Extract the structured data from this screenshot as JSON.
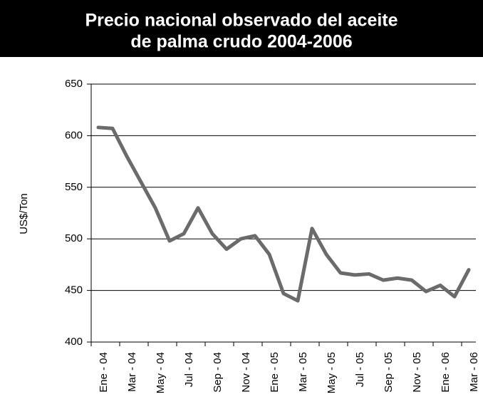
{
  "chart_data": {
    "type": "line",
    "title": "Precio nacional observado del aceite",
    "subtitle": "de palma crudo 2004-2006",
    "ylabel": "US$/Ton",
    "categories": [
      "Ene - 04",
      null,
      "Mar - 04",
      null,
      "May - 04",
      null,
      "Jul - 04",
      null,
      "Sep - 04",
      null,
      "Nov - 04",
      null,
      "Ene - 05",
      null,
      "Mar - 05",
      null,
      "May - 05",
      null,
      "Jul - 05",
      null,
      "Sep - 05",
      null,
      "Nov - 05",
      null,
      "Ene - 06",
      null,
      "Mar - 06"
    ],
    "series": [
      {
        "color": "#6b6b6b",
        "values": [
          608,
          607,
          580,
          555,
          530,
          498,
          505,
          530,
          505,
          490,
          500,
          503,
          485,
          447,
          440,
          510,
          485,
          467,
          465,
          466,
          460,
          462,
          460,
          449,
          455,
          444,
          470
        ]
      }
    ],
    "ylim": [
      400,
      650
    ],
    "yticks": [
      400,
      450,
      500,
      550,
      600,
      650
    ],
    "grid": true
  }
}
